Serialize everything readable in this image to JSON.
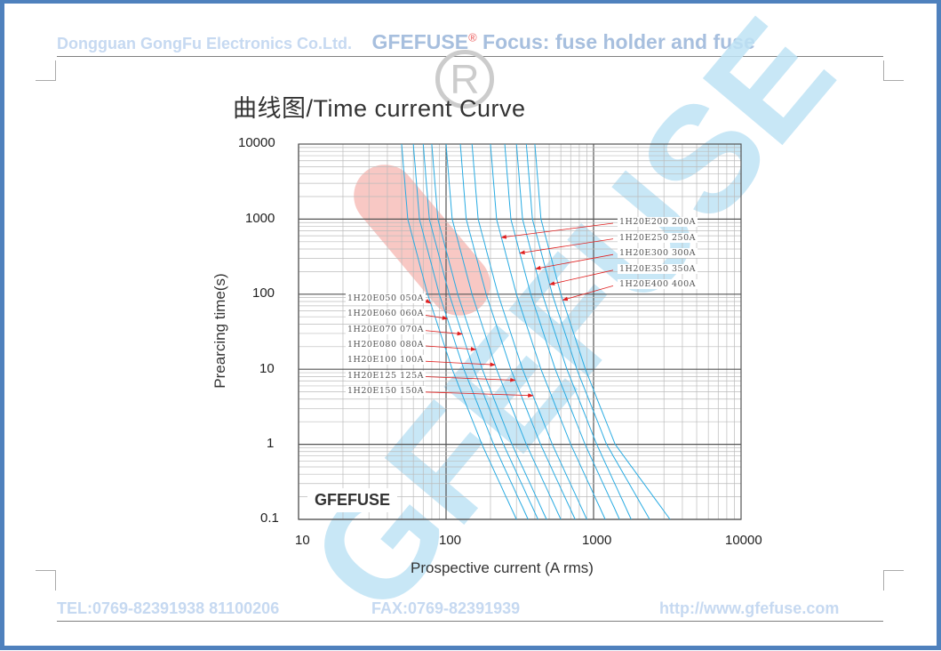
{
  "header": {
    "company": "Dongguan GongFu Electronics Co.Ltd.",
    "brand": "GFEFUSE",
    "registered": "®",
    "slogan": "Focus: fuse holder and fuse"
  },
  "title": "曲线图/Time current Curve",
  "watermark": {
    "text": "GFEFUSE",
    "box_label": "GFEFUSE",
    "color": "#bfe3f5",
    "accent": "#f5b5b0"
  },
  "footer": {
    "tel": "TEL:0769-82391938 81100206",
    "fax": "FAX:0769-82391939",
    "url": "http://www.gfefuse.com"
  },
  "colors": {
    "border": "#4f81bd",
    "curve": "#29abe2",
    "arrow": "#e02020"
  },
  "chart_data": {
    "type": "line",
    "xlabel": "Prospective current (A rms)",
    "ylabel": "Prearcing time(s)",
    "xscale": "log",
    "yscale": "log",
    "xlim": [
      10,
      10000
    ],
    "ylim": [
      0.1,
      10000
    ],
    "xticks": [
      "10",
      "100",
      "1000",
      "10000"
    ],
    "yticks": [
      "10000",
      "1000",
      "100",
      "10",
      "1",
      "0.1"
    ],
    "grid": true,
    "series": [
      {
        "name": "1H20E050 050A",
        "rating": 50,
        "points": [
          [
            50,
            10000
          ],
          [
            55,
            1000
          ],
          [
            75,
            100
          ],
          [
            110,
            10
          ],
          [
            175,
            1
          ],
          [
            300,
            0.1
          ]
        ]
      },
      {
        "name": "1H20E060 060A",
        "rating": 60,
        "points": [
          [
            60,
            10000
          ],
          [
            66,
            1000
          ],
          [
            90,
            100
          ],
          [
            132,
            10
          ],
          [
            210,
            1
          ],
          [
            360,
            0.1
          ]
        ]
      },
      {
        "name": "1H20E070 070A",
        "rating": 70,
        "points": [
          [
            70,
            10000
          ],
          [
            77,
            1000
          ],
          [
            105,
            100
          ],
          [
            154,
            10
          ],
          [
            245,
            1
          ],
          [
            420,
            0.1
          ]
        ]
      },
      {
        "name": "1H20E080 080A",
        "rating": 80,
        "points": [
          [
            80,
            10000
          ],
          [
            88,
            1000
          ],
          [
            120,
            100
          ],
          [
            176,
            10
          ],
          [
            280,
            1
          ],
          [
            480,
            0.1
          ]
        ]
      },
      {
        "name": "1H20E100 100A",
        "rating": 100,
        "points": [
          [
            100,
            10000
          ],
          [
            110,
            1000
          ],
          [
            150,
            100
          ],
          [
            220,
            10
          ],
          [
            350,
            1
          ],
          [
            600,
            0.1
          ]
        ]
      },
      {
        "name": "1H20E125 125A",
        "rating": 125,
        "points": [
          [
            125,
            10000
          ],
          [
            137,
            1000
          ],
          [
            187,
            100
          ],
          [
            275,
            10
          ],
          [
            437,
            1
          ],
          [
            750,
            0.1
          ]
        ]
      },
      {
        "name": "1H20E150 150A",
        "rating": 150,
        "points": [
          [
            150,
            10000
          ],
          [
            165,
            1000
          ],
          [
            225,
            100
          ],
          [
            330,
            10
          ],
          [
            525,
            1
          ],
          [
            900,
            0.1
          ]
        ]
      },
      {
        "name": "1H20E200 200A",
        "rating": 200,
        "points": [
          [
            200,
            10000
          ],
          [
            220,
            1000
          ],
          [
            300,
            100
          ],
          [
            440,
            10
          ],
          [
            700,
            1
          ],
          [
            1200,
            0.1
          ]
        ]
      },
      {
        "name": "1H20E250 250A",
        "rating": 250,
        "points": [
          [
            250,
            10000
          ],
          [
            275,
            1000
          ],
          [
            375,
            100
          ],
          [
            550,
            10
          ],
          [
            875,
            1
          ],
          [
            1500,
            0.1
          ]
        ]
      },
      {
        "name": "1H20E300 300A",
        "rating": 300,
        "points": [
          [
            300,
            10000
          ],
          [
            330,
            1000
          ],
          [
            450,
            100
          ],
          [
            660,
            10
          ],
          [
            1050,
            1
          ],
          [
            1800,
            0.1
          ]
        ]
      },
      {
        "name": "1H20E350 350A",
        "rating": 350,
        "points": [
          [
            350,
            10000
          ],
          [
            385,
            1000
          ],
          [
            525,
            100
          ],
          [
            770,
            10
          ],
          [
            1225,
            1
          ],
          [
            2400,
            0.1
          ]
        ]
      },
      {
        "name": "1H20E400 400A",
        "rating": 400,
        "points": [
          [
            400,
            10000
          ],
          [
            440,
            1000
          ],
          [
            600,
            100
          ],
          [
            880,
            10
          ],
          [
            1400,
            1
          ],
          [
            3300,
            0.1
          ]
        ]
      }
    ]
  }
}
